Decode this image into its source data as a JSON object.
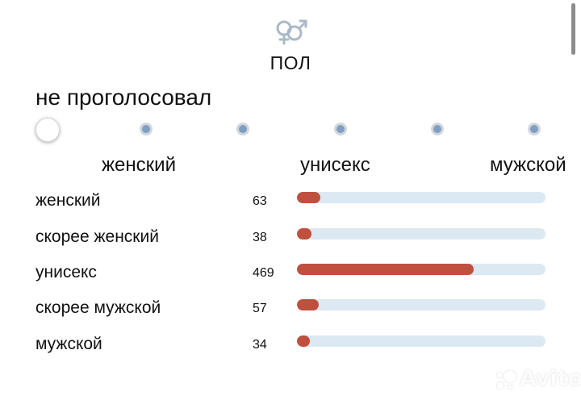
{
  "section": {
    "icon": "gender-symbols-icon",
    "title": "ПОЛ"
  },
  "vote_status": "не проголосовал",
  "rating": {
    "options_count": 6,
    "selected_index": 0
  },
  "scale_labels": {
    "left": "женский",
    "middle": "унисекс",
    "right": "мужской"
  },
  "results": [
    {
      "label": "женский",
      "count": 63
    },
    {
      "label": "скорее женский",
      "count": 38
    },
    {
      "label": "унисекс",
      "count": 469
    },
    {
      "label": "скорее мужской",
      "count": 57
    },
    {
      "label": "мужской",
      "count": 34
    }
  ],
  "colors": {
    "bar_fill": "#c0503e",
    "bar_track": "#dce8f2",
    "dot": "#7f9ec4",
    "icon": "#a9b9c8"
  },
  "watermark": {
    "text": "Avito"
  }
}
